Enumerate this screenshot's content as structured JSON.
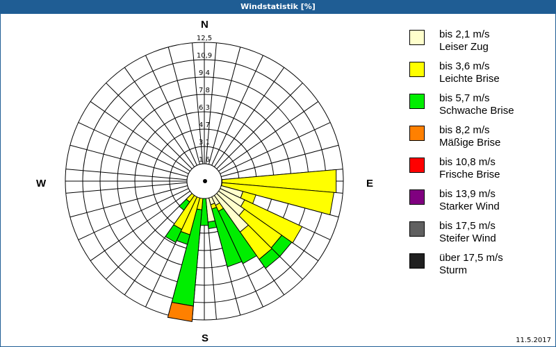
{
  "window": {
    "title": "Windstatistik [%]"
  },
  "compass": {
    "north": "N",
    "east": "E",
    "south": "S",
    "west": "W"
  },
  "date": "11.5.2017",
  "legend": [
    {
      "range": "bis 2,1 m/s",
      "name": "Leiser Zug",
      "color": "#ffffcc"
    },
    {
      "range": "bis 3,6 m/s",
      "name": "Leichte Brise",
      "color": "#ffff00"
    },
    {
      "range": "bis 5,7 m/s",
      "name": "Schwache Brise",
      "color": "#00ee00"
    },
    {
      "range": "bis 8,2 m/s",
      "name": "Mäßige Brise",
      "color": "#ff8000"
    },
    {
      "range": "bis 10,8 m/s",
      "name": "Frische Brise",
      "color": "#ff0000"
    },
    {
      "range": "bis 13,9 m/s",
      "name": "Starker Wind",
      "color": "#800080"
    },
    {
      "range": "bis 17,5 m/s",
      "name": "Steifer Wind",
      "color": "#606060"
    },
    {
      "range": "über 17,5 m/s",
      "name": "Sturm",
      "color": "#202020"
    }
  ],
  "chart_data": {
    "type": "windrose",
    "title": "Windstatistik [%]",
    "unit": "%",
    "sector_width_deg": 10,
    "rings": [
      "1,6",
      "3,1",
      "4,7",
      "6,3",
      "7,8",
      "9,4",
      "10,9",
      "12,5"
    ],
    "rmax": 12.5,
    "directions_labels": [
      "N",
      "E",
      "S",
      "W"
    ],
    "classes": [
      "bis 2,1 m/s",
      "bis 3,6 m/s",
      "bis 5,7 m/s",
      "bis 8,2 m/s",
      "bis 10,8 m/s",
      "bis 13,9 m/s",
      "bis 17,5 m/s",
      "über 17,5 m/s"
    ],
    "sectors": [
      {
        "dir": 90,
        "cumulative": [
          1.6,
          11.9
        ]
      },
      {
        "dir": 100,
        "cumulative": [
          1.6,
          11.7
        ]
      },
      {
        "dir": 110,
        "cumulative": [
          3.6,
          4.8
        ]
      },
      {
        "dir": 120,
        "cumulative": [
          4.0,
          9.7
        ]
      },
      {
        "dir": 130,
        "cumulative": [
          4.4,
          8.5,
          9.6
        ]
      },
      {
        "dir": 140,
        "cumulative": [
          5.6,
          8.6,
          9.6
        ]
      },
      {
        "dir": 150,
        "cumulative": [
          2.4,
          3.0,
          8.2
        ]
      },
      {
        "dir": 160,
        "cumulative": [
          2.2,
          2.6,
          8.0
        ]
      },
      {
        "dir": 170,
        "cumulative": [
          3.7,
          3.7,
          4.3
        ]
      },
      {
        "dir": 180,
        "cumulative": [
          0.0,
          0.4,
          4.0
        ]
      },
      {
        "dir": 190,
        "cumulative": [
          0.0,
          2.6,
          11.3,
          12.7
        ]
      },
      {
        "dir": 200,
        "cumulative": [
          0.0,
          5.0,
          5.9
        ]
      },
      {
        "dir": 210,
        "cumulative": [
          0.0,
          4.8,
          6.1
        ]
      },
      {
        "dir": 220,
        "cumulative": [
          0.0,
          2.3,
          3.2
        ]
      },
      {
        "dir": 80,
        "cumulative": [
          0.6
        ]
      },
      {
        "dir": 230,
        "cumulative": [
          0.3
        ]
      }
    ]
  }
}
